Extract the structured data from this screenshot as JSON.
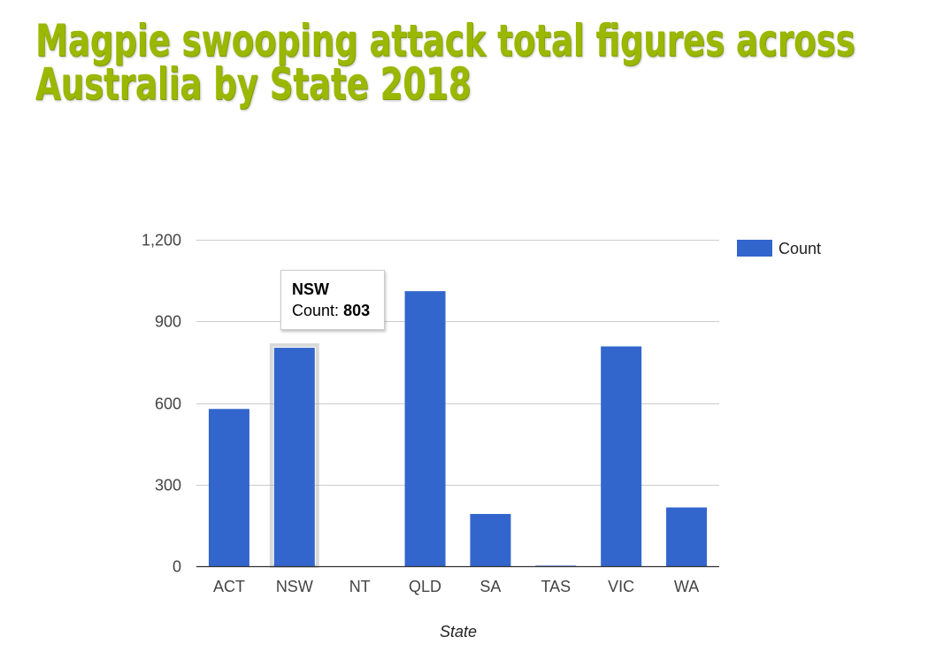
{
  "page": {
    "title": "Magpie swooping attack total figures across Australia by State 2018"
  },
  "chart_data": {
    "type": "bar",
    "title": "",
    "xlabel": "State",
    "ylabel": "",
    "categories": [
      "ACT",
      "NSW",
      "NT",
      "QLD",
      "SA",
      "TAS",
      "VIC",
      "WA"
    ],
    "series": [
      {
        "name": "Count",
        "color": "#3366cc",
        "values": [
          578,
          803,
          0,
          1011,
          192,
          2,
          808,
          216
        ]
      }
    ],
    "ylim": [
      0,
      1200
    ],
    "yticks": [
      0,
      300,
      600,
      900,
      1200
    ],
    "ytick_labels": [
      "0",
      "300",
      "600",
      "900",
      "1,200"
    ],
    "grid": true,
    "legend": "right",
    "highlighted": {
      "category": "NSW",
      "series_label": "Count:",
      "value_label": "803"
    }
  }
}
